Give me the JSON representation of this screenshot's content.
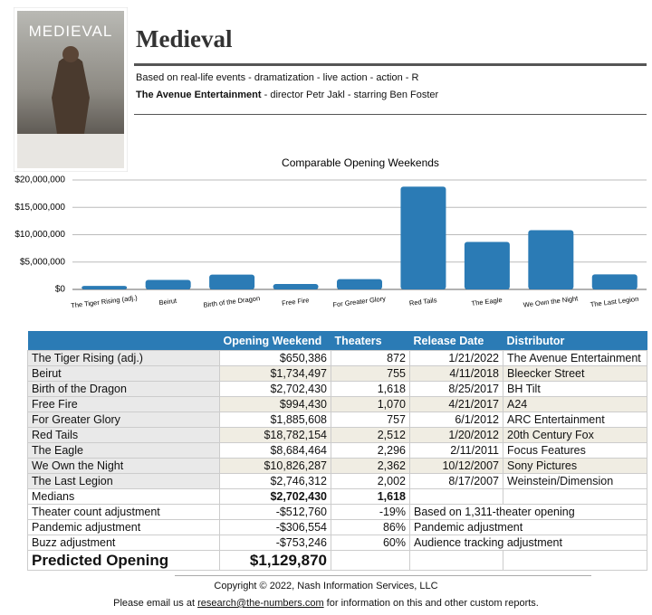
{
  "poster": {
    "title": "MEDIEVAL"
  },
  "header": {
    "title": "Medieval",
    "tags": "Based on real-life events - dramatization - live action - action - R",
    "distributor": "The Avenue Entertainment",
    "credits": " - director Petr Jakl - starring Ben Foster"
  },
  "chart_data": {
    "type": "bar",
    "title": "Comparable Opening Weekends",
    "categories": [
      "The Tiger Rising (adj.)",
      "Beirut",
      "Birth of the Dragon",
      "Free Fire",
      "For Greater Glory",
      "Red Tails",
      "The Eagle",
      "We Own the Night",
      "The Last Legion"
    ],
    "values": [
      650386,
      1734497,
      2702430,
      994430,
      1885608,
      18782154,
      8684464,
      10826287,
      2746312
    ],
    "color": "#2b7bb5",
    "ylim": [
      0,
      20000000
    ],
    "yticks": [
      {
        "value": 0,
        "label": "$0"
      },
      {
        "value": 5000000,
        "label": "$5,000,000"
      },
      {
        "value": 10000000,
        "label": "$10,000,000"
      },
      {
        "value": 15000000,
        "label": "$15,000,000"
      },
      {
        "value": 20000000,
        "label": "$20,000,000"
      }
    ],
    "grid": true
  },
  "table": {
    "columns": [
      "Opening Weekend",
      "Theaters",
      "Release Date",
      "Distributor"
    ],
    "rows": [
      [
        "The Tiger Rising (adj.)",
        "$650,386",
        "872",
        "1/21/2022",
        "The Avenue Entertainment"
      ],
      [
        "Beirut",
        "$1,734,497",
        "755",
        "4/11/2018",
        "Bleecker Street"
      ],
      [
        "Birth of the Dragon",
        "$2,702,430",
        "1,618",
        "8/25/2017",
        "BH Tilt"
      ],
      [
        "Free Fire",
        "$994,430",
        "1,070",
        "4/21/2017",
        "A24"
      ],
      [
        "For Greater Glory",
        "$1,885,608",
        "757",
        "6/1/2012",
        "ARC Entertainment"
      ],
      [
        "Red Tails",
        "$18,782,154",
        "2,512",
        "1/20/2012",
        "20th Century Fox"
      ],
      [
        "The Eagle",
        "$8,684,464",
        "2,296",
        "2/11/2011",
        "Focus Features"
      ],
      [
        "We Own the Night",
        "$10,826,287",
        "2,362",
        "10/12/2007",
        "Sony Pictures"
      ],
      [
        "The Last Legion",
        "$2,746,312",
        "2,002",
        "8/17/2007",
        "Weinstein/Dimension"
      ]
    ],
    "summary": [
      [
        "Medians",
        "$2,702,430",
        "1,618"
      ],
      [
        "Theater count adjustment",
        "-$512,760",
        "-19%",
        "Based on 1,311-theater opening"
      ],
      [
        "Pandemic adjustment",
        "-$306,554",
        "86%",
        "Pandemic adjustment"
      ],
      [
        "Buzz adjustment",
        "-$753,246",
        "60%",
        "Audience tracking adjustment"
      ]
    ],
    "prediction": [
      "Predicted Opening",
      "$1,129,870"
    ]
  },
  "footer": {
    "copyright": "Copyright © 2022, Nash Information Services, LLC",
    "email_before": "Please email us at ",
    "email": "research@the-numbers.com",
    "email_after": " for information on this and other custom reports."
  }
}
